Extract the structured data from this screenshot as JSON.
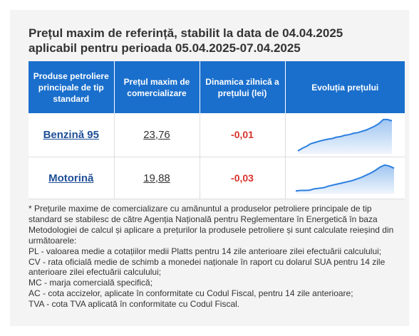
{
  "header": {
    "title_line1": "Prețul maxim de referință, stabilit la data de 04.04.2025",
    "title_line2": "aplicabil pentru perioada 05.04.2025-07.04.2025"
  },
  "table": {
    "columns": [
      "Produse petroliere principale de tip standard",
      "Prețul maxim de comercializare",
      "Dinamica zilnică a prețului (lei)",
      "Evoluția prețului"
    ],
    "rows": [
      {
        "product": "Benzină 95",
        "price": "23,76",
        "dynamics": "-0,01",
        "trend": [
          0.02,
          0.1,
          0.16,
          0.24,
          0.28,
          0.32,
          0.35,
          0.38,
          0.4,
          0.44,
          0.46,
          0.5,
          0.52,
          0.56,
          0.58,
          0.62,
          0.66,
          0.72,
          0.78,
          0.86,
          0.98,
          0.98,
          0.94
        ]
      },
      {
        "product": "Motorină",
        "price": "19,88",
        "dynamics": "-0,03",
        "trend": [
          0.02,
          0.04,
          0.04,
          0.05,
          0.1,
          0.12,
          0.14,
          0.2,
          0.24,
          0.28,
          0.32,
          0.36,
          0.4,
          0.46,
          0.52,
          0.6,
          0.68,
          0.78,
          0.9,
          0.98,
          0.94,
          0.86
        ]
      }
    ],
    "trend_color": "#2b7fe0"
  },
  "notes": {
    "lines": [
      "* Prețurile maxime de comercializare cu amănuntul a produselor petroliere principale de tip standard se stabilesc de către Agenția Națională pentru Reglementare în Energetică în baza Metodologiei de calcul și aplicare a prețurilor la produsele petroliere și sunt calculate reieșind din următoarele:",
      "PL - valoarea medie a cotațiilor medii Platts pentru 14 zile anterioare zilei efectuării calculului;",
      "CV - rata oficială medie de schimb a monedei naționale în raport cu dolarul SUA pentru 14 zile anterioare zilei efectuării calculului;",
      "MC - marja comercială specifică;",
      "AC - cota accizelor, aplicate în conformitate cu Codul Fiscal, pentru 14 zile anterioare;",
      "TVA - cota TVA aplicată în conformitate cu Codul Fiscal."
    ]
  }
}
